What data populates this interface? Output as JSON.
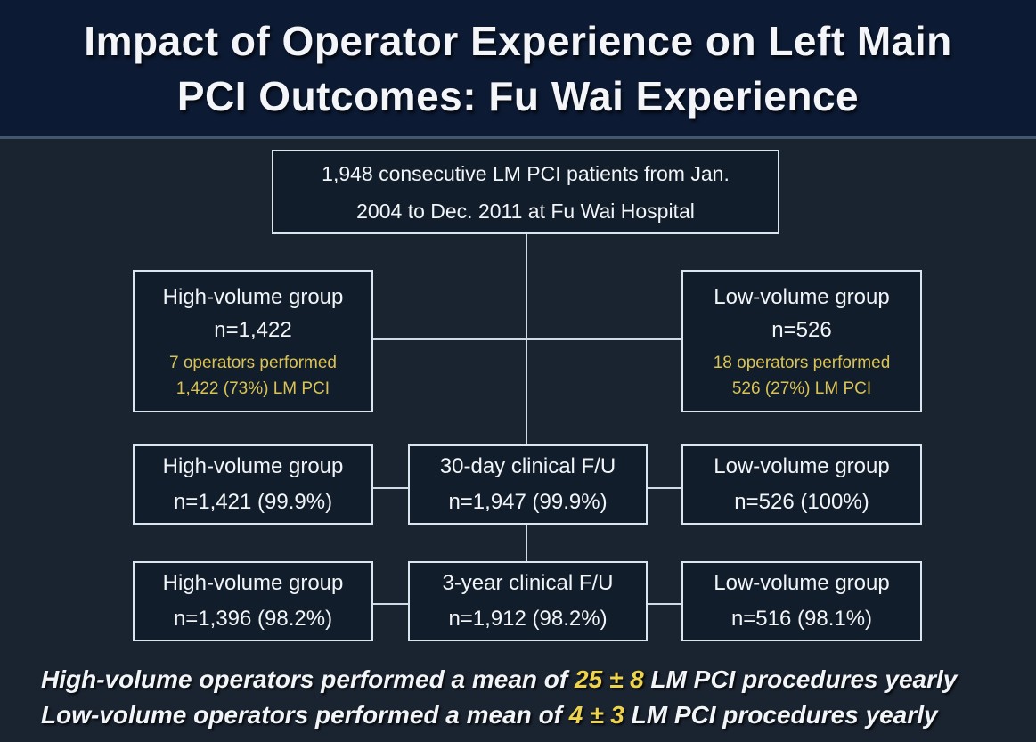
{
  "title": {
    "line1": "Impact of Operator Experience on Left Main",
    "line2": "PCI Outcomes: Fu Wai Experience"
  },
  "boxes": {
    "top": {
      "line1": "1,948 consecutive LM PCI patients from Jan.",
      "line2": "2004 to Dec. 2011 at Fu Wai Hospital"
    },
    "high_volume": {
      "title": "High-volume group",
      "n": "n=1,422",
      "detail1": "7 operators performed",
      "detail2": "1,422 (73%) LM PCI"
    },
    "low_volume": {
      "title": "Low-volume group",
      "n": "n=526",
      "detail1": "18 operators performed",
      "detail2": "526 (27%) LM PCI"
    },
    "fu30_high": {
      "title": "High-volume group",
      "n": "n=1,421 (99.9%)"
    },
    "fu30_center": {
      "title": "30-day clinical F/U",
      "n": "n=1,947 (99.9%)"
    },
    "fu30_low": {
      "title": "Low-volume group",
      "n": "n=526 (100%)"
    },
    "fu3y_high": {
      "title": "High-volume group",
      "n": "n=1,396 (98.2%)"
    },
    "fu3y_center": {
      "title": "3-year clinical F/U",
      "n": "n=1,912 (98.2%)"
    },
    "fu3y_low": {
      "title": "Low-volume group",
      "n": "n=516 (98.1%)"
    }
  },
  "footnotes": [
    {
      "prefix": "High-volume operators performed a mean of ",
      "highlight": "25 ± 8",
      "suffix": " LM PCI procedures yearly"
    },
    {
      "prefix": "Low-volume operators performed a mean of ",
      "highlight": "4 ± 3",
      "suffix": " LM PCI procedures yearly"
    }
  ],
  "colors": {
    "title_band_background": "#0c1a33",
    "body_background": "#1a2330",
    "divider": "#44566e",
    "box_fill": "#121d2b",
    "box_border": "#dbe5ef",
    "connector": "#cfdae6",
    "text_primary": "#f2f5f8",
    "box_accent_yellow": "#d9c355",
    "footnote_accent_yellow": "#eed34d"
  }
}
